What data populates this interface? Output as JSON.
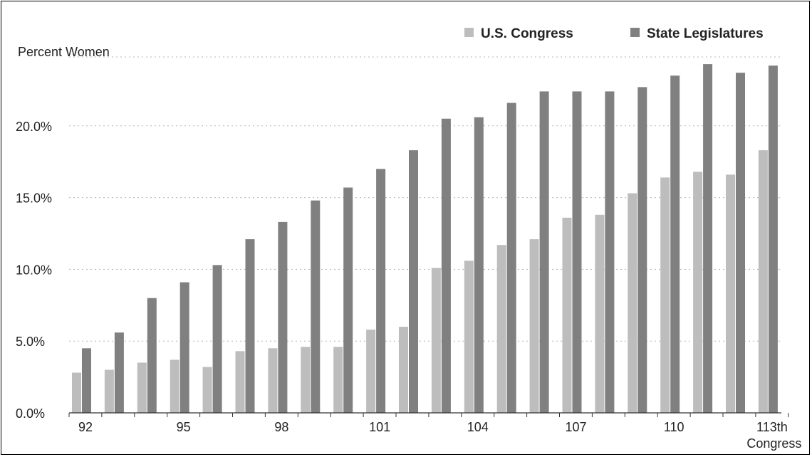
{
  "chart_data": {
    "type": "bar",
    "ylabel": "Percent Women",
    "xlabel": "",
    "ylim": [
      0,
      24.8
    ],
    "yticks": [
      "0.0%",
      "5.0%",
      "10.0%",
      "15.0%",
      "20.0%"
    ],
    "grid": "horizontal dotted",
    "legend_position": "top-right",
    "categories": [
      "92",
      "93",
      "94",
      "95",
      "96",
      "97",
      "98",
      "99",
      "100",
      "101",
      "102",
      "103",
      "104",
      "105",
      "106",
      "107",
      "108",
      "109",
      "110",
      "111",
      "112",
      "113"
    ],
    "x_tick_labels": [
      {
        "index": 0,
        "label": "92"
      },
      {
        "index": 3,
        "label": "95"
      },
      {
        "index": 6,
        "label": "98"
      },
      {
        "index": 9,
        "label": "101"
      },
      {
        "index": 12,
        "label": "104"
      },
      {
        "index": 15,
        "label": "107"
      },
      {
        "index": 18,
        "label": "110"
      },
      {
        "index": 21,
        "label": "113th"
      }
    ],
    "x_tick_sublabel": "Congress",
    "series": [
      {
        "name": "U.S. Congress",
        "color": "#bdbdbd",
        "values": [
          2.8,
          3.0,
          3.5,
          3.7,
          3.2,
          4.3,
          4.5,
          4.6,
          4.6,
          5.8,
          6.0,
          10.1,
          10.6,
          11.7,
          12.1,
          13.6,
          13.8,
          15.3,
          16.4,
          16.8,
          16.6,
          18.3
        ]
      },
      {
        "name": "State Legislatures",
        "color": "#808080",
        "values": [
          4.5,
          5.6,
          8.0,
          9.1,
          10.3,
          12.1,
          13.3,
          14.8,
          15.7,
          17.0,
          18.3,
          20.5,
          20.6,
          21.6,
          22.4,
          22.4,
          22.4,
          22.7,
          23.5,
          24.3,
          23.7,
          24.2
        ]
      }
    ]
  }
}
